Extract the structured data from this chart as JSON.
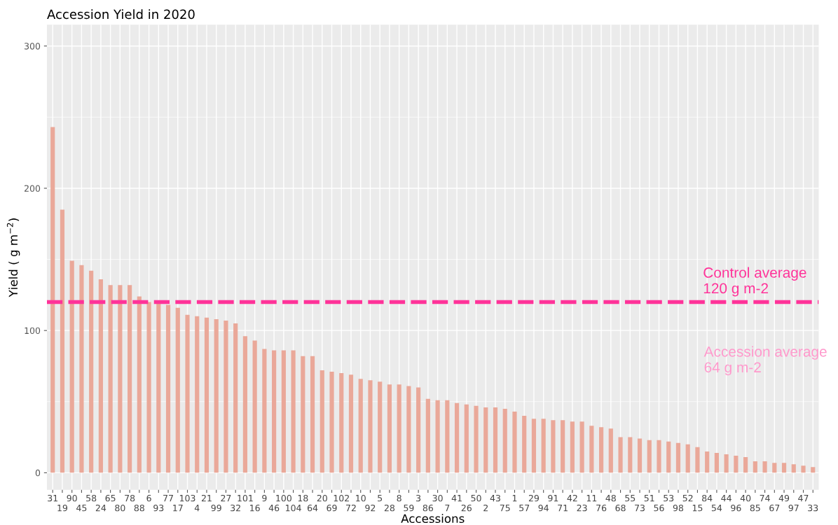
{
  "chart_data": {
    "type": "bar",
    "title": "Accession Yield in 2020",
    "xlabel": "Accessions",
    "ylabel": "Yield ( g m$^{−2}$)",
    "categories": [
      "31",
      "19",
      "90",
      "45",
      "58",
      "24",
      "65",
      "80",
      "78",
      "88",
      "6",
      "93",
      "77",
      "17",
      "103",
      "4",
      "21",
      "99",
      "27",
      "32",
      "101",
      "16",
      "9",
      "46",
      "100",
      "104",
      "18",
      "64",
      "20",
      "69",
      "102",
      "72",
      "10",
      "92",
      "5",
      "28",
      "8",
      "59",
      "3",
      "86",
      "30",
      "7",
      "41",
      "26",
      "50",
      "2",
      "43",
      "75",
      "1",
      "57",
      "29",
      "94",
      "91",
      "71",
      "42",
      "23",
      "11",
      "76",
      "48",
      "68",
      "55",
      "73",
      "51",
      "56",
      "53",
      "98",
      "52",
      "15",
      "84",
      "54",
      "44",
      "96",
      "40",
      "85",
      "74",
      "67",
      "49",
      "97",
      "47",
      "33"
    ],
    "values": [
      243,
      185,
      149,
      146,
      142,
      136,
      132,
      132,
      132,
      124,
      120,
      119,
      118,
      116,
      111,
      110,
      109,
      108,
      107,
      105,
      96,
      93,
      87,
      86,
      86,
      86,
      82,
      82,
      72,
      71,
      70,
      69,
      66,
      65,
      64,
      62,
      62,
      61,
      60,
      52,
      51,
      51,
      49,
      48,
      47,
      46,
      46,
      45,
      43,
      40,
      38,
      38,
      37,
      37,
      36,
      36,
      33,
      32,
      31,
      25,
      25,
      24,
      23,
      23,
      22,
      21,
      20,
      18,
      15,
      14,
      13,
      12,
      11,
      8,
      8,
      7,
      7,
      6,
      5,
      4
    ],
    "color": "#eaa899",
    "ylim": [
      -12,
      315
    ],
    "yticks": [
      0,
      100,
      200,
      300
    ],
    "grid": true,
    "ref_lines": [
      {
        "axis": "y",
        "value": 120,
        "label": "Control average\n120 g m-2",
        "color": "#ff3399",
        "line_style": "dashed"
      }
    ],
    "annotations": [
      "Accession average\n64 g m-2"
    ]
  }
}
